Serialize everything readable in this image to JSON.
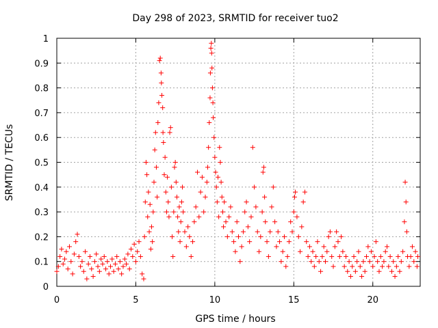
{
  "chart_data": {
    "type": "scatter",
    "title": "Day 298 of 2023, SRMTID for receiver tuo2",
    "xlabel": "GPS time / hours",
    "ylabel": "SRMTID / TECUs",
    "xlim": [
      0,
      23.0
    ],
    "ylim": [
      0,
      1
    ],
    "xticks": [
      0,
      5,
      10,
      15,
      20
    ],
    "xtick_labels": [
      "0",
      "5",
      "10",
      "15",
      "20"
    ],
    "yticks": [
      0,
      0.1,
      0.2,
      0.3,
      0.4,
      0.5,
      0.6,
      0.7,
      0.8,
      0.9,
      1
    ],
    "ytick_labels": [
      "0",
      "0.1",
      "0.2",
      "0.3",
      "0.4",
      "0.5",
      "0.6",
      "0.7",
      "0.8",
      "0.9",
      "1"
    ],
    "grid": true,
    "marker": "plus",
    "color": "#ff0000",
    "series": [
      {
        "name": "tuo2",
        "points": [
          [
            0.0,
            0.06
          ],
          [
            0.1,
            0.08
          ],
          [
            0.2,
            0.12
          ],
          [
            0.3,
            0.15
          ],
          [
            0.4,
            0.09
          ],
          [
            0.5,
            0.11
          ],
          [
            0.6,
            0.14
          ],
          [
            0.7,
            0.07
          ],
          [
            0.8,
            0.16
          ],
          [
            0.9,
            0.1
          ],
          [
            1.0,
            0.05
          ],
          [
            1.1,
            0.13
          ],
          [
            1.2,
            0.18
          ],
          [
            1.3,
            0.21
          ],
          [
            1.4,
            0.12
          ],
          [
            1.5,
            0.08
          ],
          [
            1.6,
            0.1
          ],
          [
            1.7,
            0.06
          ],
          [
            1.8,
            0.14
          ],
          [
            1.9,
            0.03
          ],
          [
            2.0,
            0.09
          ],
          [
            2.1,
            0.12
          ],
          [
            2.2,
            0.07
          ],
          [
            2.3,
            0.04
          ],
          [
            2.4,
            0.1
          ],
          [
            2.5,
            0.13
          ],
          [
            2.6,
            0.08
          ],
          [
            2.7,
            0.06
          ],
          [
            2.8,
            0.11
          ],
          [
            2.9,
            0.09
          ],
          [
            3.0,
            0.12
          ],
          [
            3.1,
            0.07
          ],
          [
            3.2,
            0.1
          ],
          [
            3.3,
            0.05
          ],
          [
            3.4,
            0.08
          ],
          [
            3.5,
            0.11
          ],
          [
            3.6,
            0.06
          ],
          [
            3.7,
            0.09
          ],
          [
            3.8,
            0.12
          ],
          [
            3.9,
            0.07
          ],
          [
            4.0,
            0.1
          ],
          [
            4.1,
            0.05
          ],
          [
            4.2,
            0.08
          ],
          [
            4.3,
            0.11
          ],
          [
            4.4,
            0.09
          ],
          [
            4.5,
            0.13
          ],
          [
            4.6,
            0.07
          ],
          [
            4.7,
            0.15
          ],
          [
            4.8,
            0.12
          ],
          [
            4.9,
            0.17
          ],
          [
            5.0,
            0.1
          ],
          [
            5.1,
            0.14
          ],
          [
            5.2,
            0.18
          ],
          [
            5.3,
            0.12
          ],
          [
            5.4,
            0.05
          ],
          [
            5.5,
            0.03
          ],
          [
            5.55,
            0.2
          ],
          [
            5.6,
            0.34
          ],
          [
            5.65,
            0.5
          ],
          [
            5.7,
            0.45
          ],
          [
            5.75,
            0.28
          ],
          [
            5.8,
            0.38
          ],
          [
            5.85,
            0.22
          ],
          [
            5.9,
            0.33
          ],
          [
            5.95,
            0.15
          ],
          [
            6.0,
            0.24
          ],
          [
            6.05,
            0.18
          ],
          [
            6.1,
            0.3
          ],
          [
            6.15,
            0.42
          ],
          [
            6.2,
            0.55
          ],
          [
            6.25,
            0.62
          ],
          [
            6.3,
            0.48
          ],
          [
            6.35,
            0.36
          ],
          [
            6.4,
            0.66
          ],
          [
            6.45,
            0.74
          ],
          [
            6.5,
            0.91
          ],
          [
            6.55,
            0.92
          ],
          [
            6.6,
            0.86
          ],
          [
            6.62,
            0.82
          ],
          [
            6.65,
            0.77
          ],
          [
            6.7,
            0.72
          ],
          [
            6.72,
            0.62
          ],
          [
            6.75,
            0.58
          ],
          [
            6.8,
            0.45
          ],
          [
            6.85,
            0.52
          ],
          [
            6.9,
            0.38
          ],
          [
            6.95,
            0.3
          ],
          [
            7.0,
            0.44
          ],
          [
            7.05,
            0.34
          ],
          [
            7.1,
            0.28
          ],
          [
            7.15,
            0.62
          ],
          [
            7.2,
            0.64
          ],
          [
            7.25,
            0.4
          ],
          [
            7.3,
            0.2
          ],
          [
            7.35,
            0.12
          ],
          [
            7.4,
            0.3
          ],
          [
            7.45,
            0.48
          ],
          [
            7.5,
            0.5
          ],
          [
            7.55,
            0.42
          ],
          [
            7.6,
            0.36
          ],
          [
            7.65,
            0.28
          ],
          [
            7.7,
            0.22
          ],
          [
            7.75,
            0.32
          ],
          [
            7.8,
            0.18
          ],
          [
            7.85,
            0.26
          ],
          [
            7.9,
            0.34
          ],
          [
            7.95,
            0.4
          ],
          [
            8.0,
            0.3
          ],
          [
            8.1,
            0.22
          ],
          [
            8.2,
            0.16
          ],
          [
            8.3,
            0.24
          ],
          [
            8.4,
            0.2
          ],
          [
            8.5,
            0.12
          ],
          [
            8.6,
            0.18
          ],
          [
            8.7,
            0.26
          ],
          [
            8.8,
            0.32
          ],
          [
            8.9,
            0.46
          ],
          [
            9.0,
            0.28
          ],
          [
            9.1,
            0.38
          ],
          [
            9.2,
            0.44
          ],
          [
            9.3,
            0.3
          ],
          [
            9.4,
            0.36
          ],
          [
            9.5,
            0.42
          ],
          [
            9.55,
            0.48
          ],
          [
            9.6,
            0.56
          ],
          [
            9.65,
            0.66
          ],
          [
            9.7,
            0.76
          ],
          [
            9.72,
            0.86
          ],
          [
            9.75,
            0.96
          ],
          [
            9.78,
            0.98
          ],
          [
            9.8,
            0.94
          ],
          [
            9.82,
            0.88
          ],
          [
            9.85,
            0.8
          ],
          [
            9.88,
            0.74
          ],
          [
            9.9,
            0.68
          ],
          [
            9.95,
            0.6
          ],
          [
            10.0,
            0.52
          ],
          [
            10.05,
            0.46
          ],
          [
            10.1,
            0.4
          ],
          [
            10.15,
            0.34
          ],
          [
            10.2,
            0.44
          ],
          [
            10.25,
            0.28
          ],
          [
            10.3,
            0.56
          ],
          [
            10.35,
            0.5
          ],
          [
            10.4,
            0.42
          ],
          [
            10.45,
            0.36
          ],
          [
            10.5,
            0.3
          ],
          [
            10.55,
            0.24
          ],
          [
            10.6,
            0.34
          ],
          [
            10.7,
            0.26
          ],
          [
            10.8,
            0.2
          ],
          [
            10.9,
            0.28
          ],
          [
            11.0,
            0.32
          ],
          [
            11.1,
            0.22
          ],
          [
            11.2,
            0.18
          ],
          [
            11.3,
            0.14
          ],
          [
            11.4,
            0.26
          ],
          [
            11.5,
            0.2
          ],
          [
            11.6,
            0.1
          ],
          [
            11.7,
            0.16
          ],
          [
            11.8,
            0.22
          ],
          [
            11.9,
            0.3
          ],
          [
            12.0,
            0.34
          ],
          [
            12.1,
            0.24
          ],
          [
            12.2,
            0.18
          ],
          [
            12.3,
            0.28
          ],
          [
            12.4,
            0.56
          ],
          [
            12.5,
            0.4
          ],
          [
            12.6,
            0.32
          ],
          [
            12.7,
            0.22
          ],
          [
            12.8,
            0.14
          ],
          [
            12.9,
            0.2
          ],
          [
            13.0,
            0.3
          ],
          [
            13.05,
            0.46
          ],
          [
            13.1,
            0.48
          ],
          [
            13.15,
            0.36
          ],
          [
            13.2,
            0.26
          ],
          [
            13.3,
            0.18
          ],
          [
            13.4,
            0.12
          ],
          [
            13.5,
            0.22
          ],
          [
            13.6,
            0.32
          ],
          [
            13.7,
            0.4
          ],
          [
            13.8,
            0.26
          ],
          [
            13.9,
            0.16
          ],
          [
            14.0,
            0.22
          ],
          [
            14.1,
            0.18
          ],
          [
            14.2,
            0.1
          ],
          [
            14.3,
            0.14
          ],
          [
            14.4,
            0.2
          ],
          [
            14.5,
            0.08
          ],
          [
            14.6,
            0.12
          ],
          [
            14.7,
            0.18
          ],
          [
            14.8,
            0.26
          ],
          [
            14.9,
            0.22
          ],
          [
            15.0,
            0.3
          ],
          [
            15.05,
            0.36
          ],
          [
            15.1,
            0.38
          ],
          [
            15.2,
            0.28
          ],
          [
            15.3,
            0.2
          ],
          [
            15.4,
            0.14
          ],
          [
            15.5,
            0.24
          ],
          [
            15.6,
            0.34
          ],
          [
            15.7,
            0.38
          ],
          [
            15.8,
            0.18
          ],
          [
            15.9,
            0.12
          ],
          [
            16.0,
            0.16
          ],
          [
            16.1,
            0.1
          ],
          [
            16.2,
            0.14
          ],
          [
            16.3,
            0.08
          ],
          [
            16.4,
            0.12
          ],
          [
            16.5,
            0.18
          ],
          [
            16.6,
            0.1
          ],
          [
            16.7,
            0.06
          ],
          [
            16.8,
            0.12
          ],
          [
            16.9,
            0.16
          ],
          [
            17.0,
            0.1
          ],
          [
            17.1,
            0.14
          ],
          [
            17.2,
            0.2
          ],
          [
            17.3,
            0.22
          ],
          [
            17.4,
            0.12
          ],
          [
            17.5,
            0.08
          ],
          [
            17.6,
            0.16
          ],
          [
            17.7,
            0.22
          ],
          [
            17.8,
            0.18
          ],
          [
            17.9,
            0.12
          ],
          [
            18.0,
            0.2
          ],
          [
            18.1,
            0.14
          ],
          [
            18.2,
            0.08
          ],
          [
            18.3,
            0.12
          ],
          [
            18.4,
            0.06
          ],
          [
            18.5,
            0.1
          ],
          [
            18.6,
            0.04
          ],
          [
            18.7,
            0.08
          ],
          [
            18.8,
            0.12
          ],
          [
            18.9,
            0.06
          ],
          [
            19.0,
            0.1
          ],
          [
            19.1,
            0.14
          ],
          [
            19.2,
            0.08
          ],
          [
            19.3,
            0.04
          ],
          [
            19.4,
            0.1
          ],
          [
            19.5,
            0.06
          ],
          [
            19.6,
            0.12
          ],
          [
            19.7,
            0.16
          ],
          [
            19.8,
            0.1
          ],
          [
            19.9,
            0.14
          ],
          [
            20.0,
            0.08
          ],
          [
            20.1,
            0.12
          ],
          [
            20.2,
            0.18
          ],
          [
            20.3,
            0.1
          ],
          [
            20.4,
            0.06
          ],
          [
            20.5,
            0.12
          ],
          [
            20.6,
            0.08
          ],
          [
            20.7,
            0.1
          ],
          [
            20.8,
            0.14
          ],
          [
            20.9,
            0.16
          ],
          [
            21.0,
            0.08
          ],
          [
            21.1,
            0.12
          ],
          [
            21.2,
            0.06
          ],
          [
            21.3,
            0.1
          ],
          [
            21.4,
            0.04
          ],
          [
            21.5,
            0.08
          ],
          [
            21.6,
            0.12
          ],
          [
            21.7,
            0.06
          ],
          [
            21.8,
            0.1
          ],
          [
            21.9,
            0.14
          ],
          [
            22.0,
            0.26
          ],
          [
            22.05,
            0.42
          ],
          [
            22.1,
            0.34
          ],
          [
            22.15,
            0.22
          ],
          [
            22.2,
            0.12
          ],
          [
            22.3,
            0.08
          ],
          [
            22.4,
            0.12
          ],
          [
            22.5,
            0.16
          ],
          [
            22.6,
            0.1
          ],
          [
            22.7,
            0.14
          ],
          [
            22.8,
            0.08
          ],
          [
            22.85,
            0.12
          ]
        ]
      }
    ]
  }
}
